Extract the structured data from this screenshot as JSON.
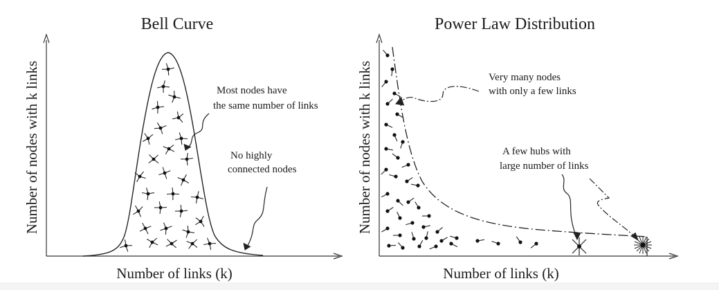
{
  "left_panel": {
    "title": "Bell Curve",
    "x_label": "Number of links (k)",
    "y_label": "Number of nodes with k links",
    "annotation_peak": [
      "Most nodes have",
      "the same number of links"
    ],
    "annotation_tail": [
      "No highly",
      "connected nodes"
    ]
  },
  "right_panel": {
    "title": "Power Law Distribution",
    "x_label": "Number of links (k)",
    "y_label": "Number of nodes with k links",
    "annotation_many": [
      "Very many nodes",
      "with only a few links"
    ],
    "annotation_hubs": [
      "A few hubs with",
      "large number of links"
    ]
  }
}
